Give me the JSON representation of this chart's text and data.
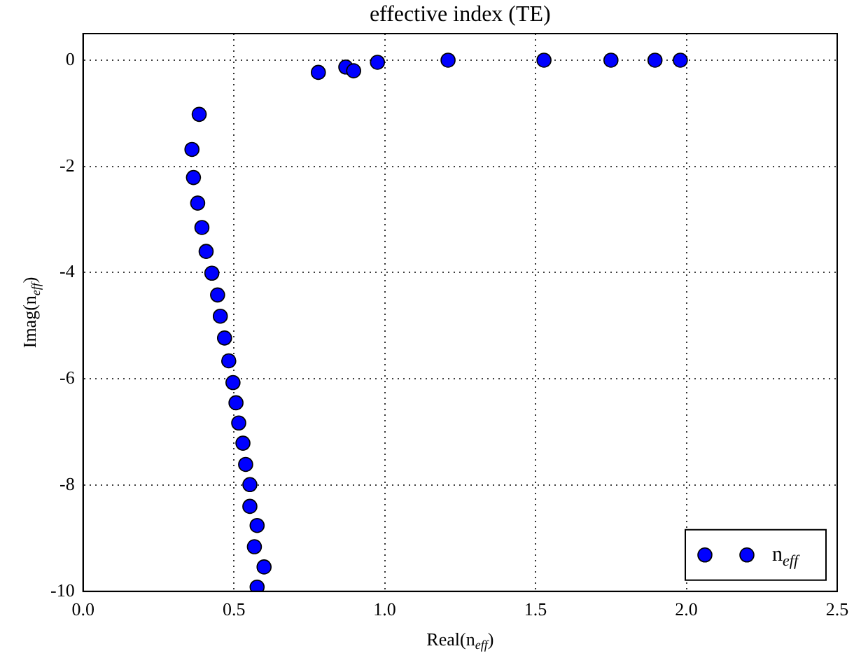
{
  "chart_data": {
    "type": "scatter",
    "title": "effective index (TE)",
    "xlabel": "Real(n$_{eff}$)",
    "ylabel": "Imag(n$_{eff}$)",
    "series": [
      {
        "name": "n$_{eff}$",
        "color": "#0000ff",
        "x": [
          0.78,
          0.871,
          0.897,
          0.976,
          1.21,
          1.528,
          1.75,
          1.896,
          1.98,
          0.385,
          0.361,
          0.366,
          0.38,
          0.394,
          0.408,
          0.427,
          0.446,
          0.455,
          0.469,
          0.483,
          0.497,
          0.507,
          0.516,
          0.53,
          0.539,
          0.553,
          0.553,
          0.577,
          0.568,
          0.6,
          0.577
        ],
        "values": [
          -0.23,
          -0.13,
          -0.2,
          -0.04,
          0,
          0,
          0,
          0,
          0,
          -1.02,
          -1.68,
          -2.21,
          -2.69,
          -3.15,
          -3.6,
          -4.01,
          -4.42,
          -4.82,
          -5.23,
          -5.66,
          -6.07,
          -6.45,
          -6.83,
          -7.21,
          -7.61,
          -7.99,
          -8.4,
          -8.76,
          -9.16,
          -9.54,
          -9.92
        ]
      }
    ],
    "xlim": [
      0,
      2.5
    ],
    "xticks": [
      {
        "value": 0,
        "label": "0.0"
      },
      {
        "value": 0.5,
        "label": "0.5"
      },
      {
        "value": 1,
        "label": "1.0"
      },
      {
        "value": 1.5,
        "label": "1.5"
      },
      {
        "value": 2,
        "label": "2.0"
      },
      {
        "value": 2.5,
        "label": "2.5"
      }
    ],
    "ylim": [
      -10,
      0.5
    ],
    "yticks": [
      -10,
      -8,
      -6,
      -4,
      -2,
      0
    ],
    "grid": true,
    "line_style": "dotted",
    "legend": "bottom right",
    "marker": "circle"
  }
}
